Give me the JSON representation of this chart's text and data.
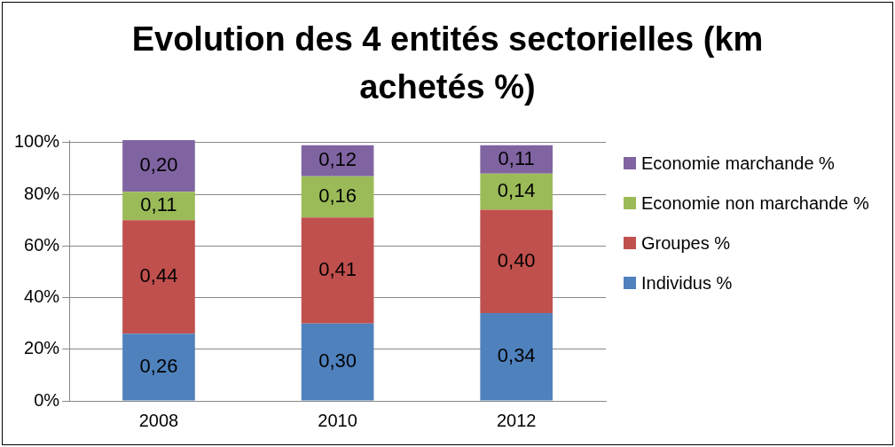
{
  "chart_data": {
    "type": "bar",
    "title": "Evolution des 4 entités sectorielles (km achetés %)",
    "categories": [
      "2008",
      "2010",
      "2012"
    ],
    "stacked": true,
    "legend": "right",
    "grid": "y",
    "ylim": [
      0,
      1.01
    ],
    "yticks": [
      {
        "value": 0,
        "label": "0%"
      },
      {
        "value": 0.2,
        "label": "20%"
      },
      {
        "value": 0.4,
        "label": "40%"
      },
      {
        "value": 0.6,
        "label": "60%"
      },
      {
        "value": 0.8,
        "label": "80%"
      },
      {
        "value": 1,
        "label": "100%"
      }
    ],
    "series": [
      {
        "name": "Individus %",
        "color": "#4f81bd",
        "values": [
          0.26,
          0.3,
          0.34
        ],
        "value_labels": [
          "0,26",
          "0,30",
          "0,34"
        ]
      },
      {
        "name": "Groupes %",
        "color": "#c0504d",
        "values": [
          0.44,
          0.41,
          0.4
        ],
        "value_labels": [
          "0,44",
          "0,41",
          "0,40"
        ]
      },
      {
        "name": "Economie non marchande %",
        "color": "#9bbb59",
        "values": [
          0.11,
          0.16,
          0.14
        ],
        "value_labels": [
          "0,11",
          "0,16",
          "0,14"
        ]
      },
      {
        "name": "Economie marchande %",
        "color": "#8064a2",
        "values": [
          0.2,
          0.12,
          0.11
        ],
        "value_labels": [
          "0,20",
          "0,12",
          "0,11"
        ]
      }
    ]
  }
}
